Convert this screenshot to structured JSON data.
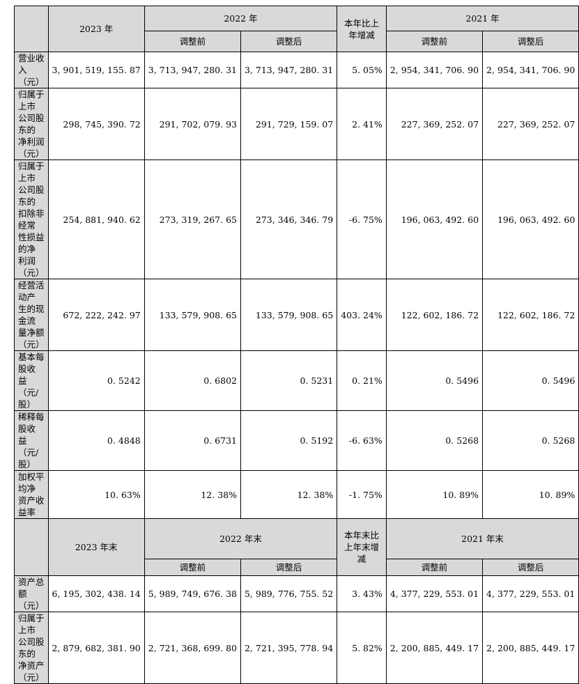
{
  "top_header": {
    "col_2023": "2023 年",
    "col_2022": "2022 年",
    "col_change": "本年比上\n年增减",
    "col_2021": "2021 年",
    "before": "调整前",
    "after": "调整后"
  },
  "rows": [
    {
      "label": "营业收入\n（元）",
      "values": [
        "3, 901, 519, 155. 87",
        "3, 713, 947, 280. 31",
        "3, 713, 947, 280. 31",
        "5. 05%",
        "2, 954, 341, 706. 90",
        "2, 954, 341, 706. 90"
      ]
    },
    {
      "label": "归属于上市\n公司股东的\n净利润\n（元）",
      "values": [
        "298, 745, 390. 72",
        "291, 702, 079. 93",
        "291, 729, 159. 07",
        "2. 41%",
        "227, 369, 252. 07",
        "227, 369, 252. 07"
      ]
    },
    {
      "label": "归属于上市\n公司股东的\n扣除非经常\n性损益的净\n利润（元）",
      "values": [
        "254, 881, 940. 62",
        "273, 319, 267. 65",
        "273, 346, 346. 79",
        "-6. 75%",
        "196, 063, 492. 60",
        "196, 063, 492. 60"
      ]
    },
    {
      "label": "经营活动产\n生的现金流\n量净额\n（元）",
      "values": [
        "672, 222, 242. 97",
        "133, 579, 908. 65",
        "133, 579, 908. 65",
        "403. 24%",
        "122, 602, 186. 72",
        "122, 602, 186. 72"
      ]
    },
    {
      "label": "基本每股收\n益（元/股）",
      "values": [
        "0. 5242",
        "0. 6802",
        "0. 5231",
        "0. 21%",
        "0. 5496",
        "0. 5496"
      ]
    },
    {
      "label": "稀释每股收\n益（元/股）",
      "values": [
        "0. 4848",
        "0. 6731",
        "0. 5192",
        "-6. 63%",
        "0. 5268",
        "0. 5268"
      ]
    },
    {
      "label": "加权平均净\n资产收益率",
      "values": [
        "10. 63%",
        "12. 38%",
        "12. 38%",
        "-1. 75%",
        "10. 89%",
        "10. 89%"
      ]
    }
  ],
  "bottom_header": {
    "col_2023": "2023 年末",
    "col_2022": "2022 年末",
    "col_change": "本年末比\n上年末增\n减",
    "col_2021": "2021 年末",
    "before": "调整前",
    "after": "调整后"
  },
  "bottom_rows": [
    {
      "label": "资产总额\n（元）",
      "values": [
        "6, 195, 302, 438. 14",
        "5, 989, 749, 676. 38",
        "5, 989, 776, 755. 52",
        "3. 43%",
        "4, 377, 229, 553. 01",
        "4, 377, 229, 553. 01"
      ]
    },
    {
      "label": "归属于上市\n公司股东的\n净资产\n（元）",
      "values": [
        "2, 879, 682, 381. 90",
        "2, 721, 368, 699. 80",
        "2, 721, 395, 778. 94",
        "5. 82%",
        "2, 200, 885, 449. 17",
        "2, 200, 885, 449. 17"
      ]
    }
  ],
  "colors": {
    "header_gray": "#d9d9d9",
    "border": "#000000"
  }
}
